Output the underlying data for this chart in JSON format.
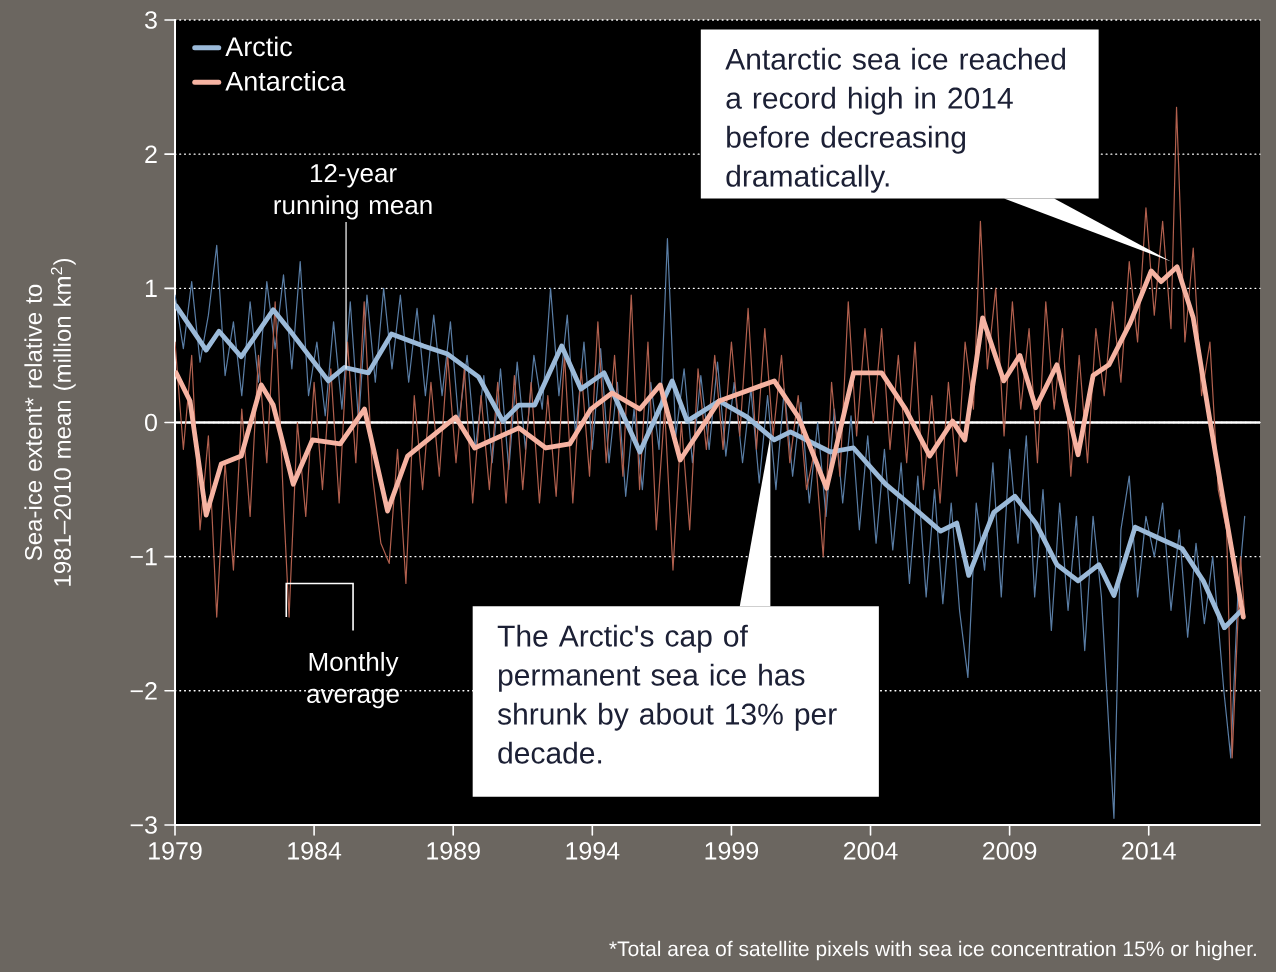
{
  "chart_data": {
    "type": "line",
    "ylabel": "Sea-ice extent* relative to 1981–2010 mean (million km$^{2}$)",
    "xlim": [
      1979,
      2018
    ],
    "ylim": [
      -3,
      3
    ],
    "xticks": [
      1979,
      1984,
      1989,
      1994,
      1999,
      2004,
      2009,
      2014
    ],
    "yticks": [
      {
        "value": -3,
        "label": "−3"
      },
      {
        "value": -2,
        "label": "−2"
      },
      {
        "value": -1,
        "label": "−1"
      },
      0,
      1,
      2,
      3
    ],
    "grid": "y",
    "legend": "top left",
    "line_style": "solid",
    "marker": "none",
    "ref_lines": [
      {
        "axis": "y",
        "value": 0,
        "color": "#ffffff"
      }
    ],
    "series": [
      {
        "color": "#5a7ea6",
        "x": [
          1979.0,
          1979.3,
          1979.6,
          1979.9,
          1980.2,
          1980.5,
          1980.8,
          1981.1,
          1981.4,
          1981.7,
          1982.0,
          1982.3,
          1982.6,
          1982.9,
          1983.2,
          1983.5,
          1983.8,
          1984.1,
          1984.4,
          1984.7,
          1985.0,
          1985.3,
          1985.6,
          1985.9,
          1986.2,
          1986.5,
          1986.8,
          1987.1,
          1987.4,
          1987.7,
          1988.0,
          1988.3,
          1988.6,
          1988.9,
          1989.2,
          1989.5,
          1989.8,
          1990.1,
          1990.4,
          1990.7,
          1991.0,
          1991.3,
          1991.6,
          1991.9,
          1992.2,
          1992.5,
          1992.8,
          1993.1,
          1993.4,
          1993.7,
          1994.0,
          1994.3,
          1994.6,
          1994.9,
          1995.2,
          1995.5,
          1995.8,
          1996.1,
          1996.4,
          1996.7,
          1997.0,
          1997.3,
          1997.6,
          1997.9,
          1998.2,
          1998.5,
          1998.8,
          1999.1,
          1999.4,
          1999.7,
          2000.0,
          2000.3,
          2000.6,
          2000.9,
          2001.2,
          2001.5,
          2001.8,
          2002.1,
          2002.4,
          2002.7,
          2003.0,
          2003.3,
          2003.6,
          2003.9,
          2004.2,
          2004.5,
          2004.8,
          2005.1,
          2005.4,
          2005.7,
          2006.0,
          2006.3,
          2006.6,
          2006.9,
          2007.2,
          2007.5,
          2007.8,
          2008.1,
          2008.4,
          2008.7,
          2009.0,
          2009.3,
          2009.6,
          2009.9,
          2010.2,
          2010.5,
          2010.8,
          2011.1,
          2011.4,
          2011.7,
          2012.0,
          2012.3,
          2012.75,
          2013.0,
          2013.3,
          2013.6,
          2013.9,
          2014.2,
          2014.5,
          2014.8,
          2015.1,
          2015.4,
          2015.7,
          2016.0,
          2016.3,
          2016.7,
          2016.95,
          2017.2,
          2017.45
        ],
        "values": [
          0.95,
          0.55,
          1.05,
          0.45,
          0.8,
          1.32,
          0.35,
          0.75,
          0.2,
          0.9,
          0.3,
          1.05,
          0.55,
          1.1,
          0.4,
          1.2,
          0.2,
          0.6,
          0.05,
          0.75,
          0.1,
          0.9,
          0.0,
          0.95,
          0.3,
          1.0,
          0.4,
          0.95,
          0.3,
          0.85,
          0.2,
          0.8,
          0.2,
          0.75,
          0.0,
          0.5,
          -0.2,
          0.35,
          -0.3,
          0.4,
          -0.35,
          0.45,
          -0.2,
          0.5,
          0.1,
          1.0,
          0.2,
          0.8,
          -0.1,
          0.6,
          -0.2,
          0.55,
          -0.3,
          0.3,
          -0.55,
          0.1,
          -0.5,
          0.3,
          -0.2,
          1.37,
          -0.1,
          0.4,
          -0.3,
          0.35,
          -0.2,
          0.45,
          -0.25,
          0.3,
          -0.3,
          0.25,
          -0.45,
          0.2,
          -0.5,
          0.25,
          -0.4,
          0.15,
          -0.6,
          0.0,
          -0.7,
          0.1,
          -0.6,
          0.05,
          -0.8,
          -0.1,
          -0.9,
          -0.2,
          -0.95,
          -0.3,
          -1.2,
          -0.4,
          -1.3,
          -0.5,
          -1.35,
          -0.6,
          -1.4,
          -1.9,
          -0.6,
          -1.1,
          -0.3,
          -1.3,
          -0.2,
          -0.9,
          -0.1,
          -1.3,
          -0.5,
          -1.55,
          -0.6,
          -1.4,
          -0.7,
          -1.7,
          -0.7,
          -1.3,
          -2.95,
          -0.8,
          -0.4,
          -1.3,
          -0.7,
          -1.0,
          -0.6,
          -1.4,
          -0.8,
          -1.6,
          -0.9,
          -1.5,
          -1.0,
          -2.0,
          -2.5,
          -1.3,
          -0.7
        ]
      },
      {
        "color": "#b2604e",
        "x": [
          1979.0,
          1979.3,
          1979.6,
          1979.9,
          1980.2,
          1980.5,
          1980.8,
          1981.1,
          1981.4,
          1981.7,
          1982.0,
          1982.3,
          1982.6,
          1982.9,
          1983.1,
          1983.4,
          1983.7,
          1984.0,
          1984.3,
          1984.6,
          1984.9,
          1985.2,
          1985.5,
          1985.8,
          1986.1,
          1986.4,
          1986.7,
          1987.0,
          1987.3,
          1987.6,
          1987.9,
          1988.2,
          1988.5,
          1988.8,
          1989.1,
          1989.4,
          1989.7,
          1990.0,
          1990.3,
          1990.6,
          1990.9,
          1991.2,
          1991.5,
          1991.8,
          1992.1,
          1992.4,
          1992.7,
          1993.0,
          1993.3,
          1993.6,
          1993.9,
          1994.2,
          1994.5,
          1994.8,
          1995.1,
          1995.4,
          1995.7,
          1996.0,
          1996.3,
          1996.6,
          1996.9,
          1997.2,
          1997.5,
          1997.8,
          1998.1,
          1998.4,
          1998.7,
          1999.0,
          1999.3,
          1999.6,
          1999.9,
          2000.2,
          2000.5,
          2000.8,
          2001.1,
          2001.4,
          2001.7,
          2002.0,
          2002.3,
          2002.6,
          2002.9,
          2003.2,
          2003.5,
          2003.8,
          2004.1,
          2004.4,
          2004.7,
          2005.0,
          2005.3,
          2005.6,
          2005.9,
          2006.2,
          2006.5,
          2006.8,
          2007.1,
          2007.4,
          2007.7,
          2007.95,
          2008.2,
          2008.5,
          2008.8,
          2009.1,
          2009.4,
          2009.7,
          2010.0,
          2010.3,
          2010.6,
          2010.9,
          2011.2,
          2011.5,
          2011.8,
          2012.1,
          2012.4,
          2012.7,
          2013.0,
          2013.3,
          2013.6,
          2013.9,
          2014.2,
          2014.5,
          2014.8,
          2015.0,
          2015.3,
          2015.6,
          2015.9,
          2016.2,
          2016.5,
          2016.8,
          2017.0,
          2017.3,
          2017.45
        ],
        "values": [
          0.6,
          -0.2,
          0.5,
          -0.8,
          -0.1,
          -1.45,
          -0.3,
          -1.1,
          0.1,
          -0.7,
          0.5,
          -0.3,
          0.9,
          -0.6,
          -1.45,
          0.0,
          -0.7,
          0.3,
          -0.5,
          0.4,
          -0.6,
          0.6,
          -0.3,
          0.9,
          -0.4,
          -0.9,
          -1.05,
          -0.2,
          -1.2,
          0.2,
          -0.5,
          0.3,
          -0.4,
          0.5,
          -0.3,
          0.4,
          -0.6,
          0.2,
          -0.5,
          0.3,
          -0.6,
          0.35,
          -0.5,
          0.3,
          -0.6,
          0.2,
          -0.55,
          0.5,
          -0.6,
          0.4,
          -0.4,
          0.75,
          -0.3,
          0.5,
          -0.4,
          0.95,
          -0.5,
          0.6,
          -0.8,
          0.1,
          -1.1,
          0.0,
          -0.8,
          0.4,
          -0.2,
          0.5,
          -0.2,
          0.6,
          -0.1,
          0.85,
          -0.2,
          0.7,
          -0.1,
          0.5,
          -0.3,
          0.2,
          -0.5,
          -0.2,
          -1.0,
          0.3,
          -0.4,
          0.9,
          -0.1,
          0.7,
          0.0,
          0.7,
          -0.2,
          0.5,
          -0.3,
          0.6,
          -0.5,
          0.2,
          -0.6,
          0.3,
          -0.4,
          0.6,
          0.1,
          1.5,
          0.4,
          1.0,
          -0.1,
          0.9,
          0.1,
          0.7,
          -0.3,
          0.9,
          0.1,
          0.7,
          -0.4,
          0.5,
          -0.3,
          0.7,
          0.2,
          0.9,
          0.3,
          1.2,
          0.6,
          1.6,
          0.8,
          1.5,
          0.7,
          2.35,
          0.6,
          1.3,
          0.2,
          0.6,
          -0.5,
          -0.8,
          -2.5,
          -1.0,
          -1.45
        ]
      },
      {
        "name": "Arctic",
        "color": "#9bbad9",
        "x": [
          1979.04,
          1980.12,
          1980.58,
          1981.38,
          1982.53,
          1983.11,
          1984.51,
          1985.09,
          1985.95,
          1986.78,
          1987.93,
          1988.8,
          1989.91,
          1990.78,
          1991.36,
          1991.93,
          1992.9,
          1993.59,
          1994.42,
          1995.71,
          1996.87,
          1997.41,
          1998.56,
          1999.57,
          2000.54,
          2001.12,
          2002.56,
          2003.39,
          2004.54,
          2005.69,
          2006.52,
          2007.1,
          2007.53,
          2008.43,
          2009.19,
          2009.94,
          2010.7,
          2011.46,
          2012.21,
          2012.75,
          2013.51,
          2014.45,
          2015.2,
          2015.96,
          2016.72,
          2017.29
        ],
        "values": [
          0.87,
          0.54,
          0.68,
          0.49,
          0.84,
          0.69,
          0.31,
          0.41,
          0.37,
          0.66,
          0.57,
          0.51,
          0.34,
          0.01,
          0.13,
          0.13,
          0.57,
          0.25,
          0.37,
          -0.22,
          0.31,
          0.01,
          0.16,
          0.04,
          -0.13,
          -0.07,
          -0.22,
          -0.19,
          -0.46,
          -0.66,
          -0.81,
          -0.75,
          -1.14,
          -0.67,
          -0.55,
          -0.75,
          -1.06,
          -1.18,
          -1.06,
          -1.29,
          -0.78,
          -0.87,
          -0.94,
          -1.18,
          -1.53,
          -1.41
        ]
      },
      {
        "name": "Antarctica",
        "color": "#f6b3a2",
        "x": [
          1979.04,
          1979.54,
          1980.12,
          1980.66,
          1981.38,
          1982.1,
          1982.53,
          1983.25,
          1983.94,
          1984.94,
          1985.81,
          1986.64,
          1987.36,
          1989.09,
          1989.77,
          1991.36,
          1992.33,
          1993.19,
          1993.95,
          1994.71,
          1995.71,
          1996.44,
          1997.16,
          1998.56,
          2000.54,
          2001.41,
          2002.42,
          2003.39,
          2004.4,
          2005.26,
          2006.13,
          2006.95,
          2007.39,
          2008.03,
          2008.79,
          2009.37,
          2009.94,
          2010.7,
          2011.46,
          2012.0,
          2012.57,
          2013.33,
          2014.09,
          2014.45,
          2015.02,
          2015.6,
          2016.18,
          2016.72,
          2017.4
        ],
        "values": [
          0.37,
          0.16,
          -0.69,
          -0.31,
          -0.25,
          0.28,
          0.13,
          -0.46,
          -0.13,
          -0.16,
          0.1,
          -0.66,
          -0.25,
          0.04,
          -0.19,
          -0.04,
          -0.19,
          -0.16,
          0.1,
          0.22,
          0.1,
          0.28,
          -0.28,
          0.16,
          0.31,
          0.04,
          -0.49,
          0.37,
          0.37,
          0.1,
          -0.25,
          0.01,
          -0.13,
          0.78,
          0.31,
          0.5,
          0.11,
          0.43,
          -0.24,
          0.35,
          0.43,
          0.74,
          1.13,
          1.05,
          1.16,
          0.78,
          0.04,
          -0.63,
          -1.45
        ]
      }
    ],
    "annotations": [
      {
        "text": "12-year running mean",
        "x": 1985.1,
        "y": 0.4
      },
      {
        "text": "Monthly average",
        "x": 1983.0,
        "y": -1.45
      },
      {
        "text": "Antarctic sea ice reached a record high in 2014 before decreasing dramatically.",
        "x": 2014.8,
        "y": 1.2
      },
      {
        "text": "The Arctic's cap of permanent sea ice has shrunk by about 13% per decade.",
        "x": 2000.4,
        "y": -0.1
      },
      "*Total area of satellite pixels with sea ice concentration 15% or higher."
    ]
  }
}
